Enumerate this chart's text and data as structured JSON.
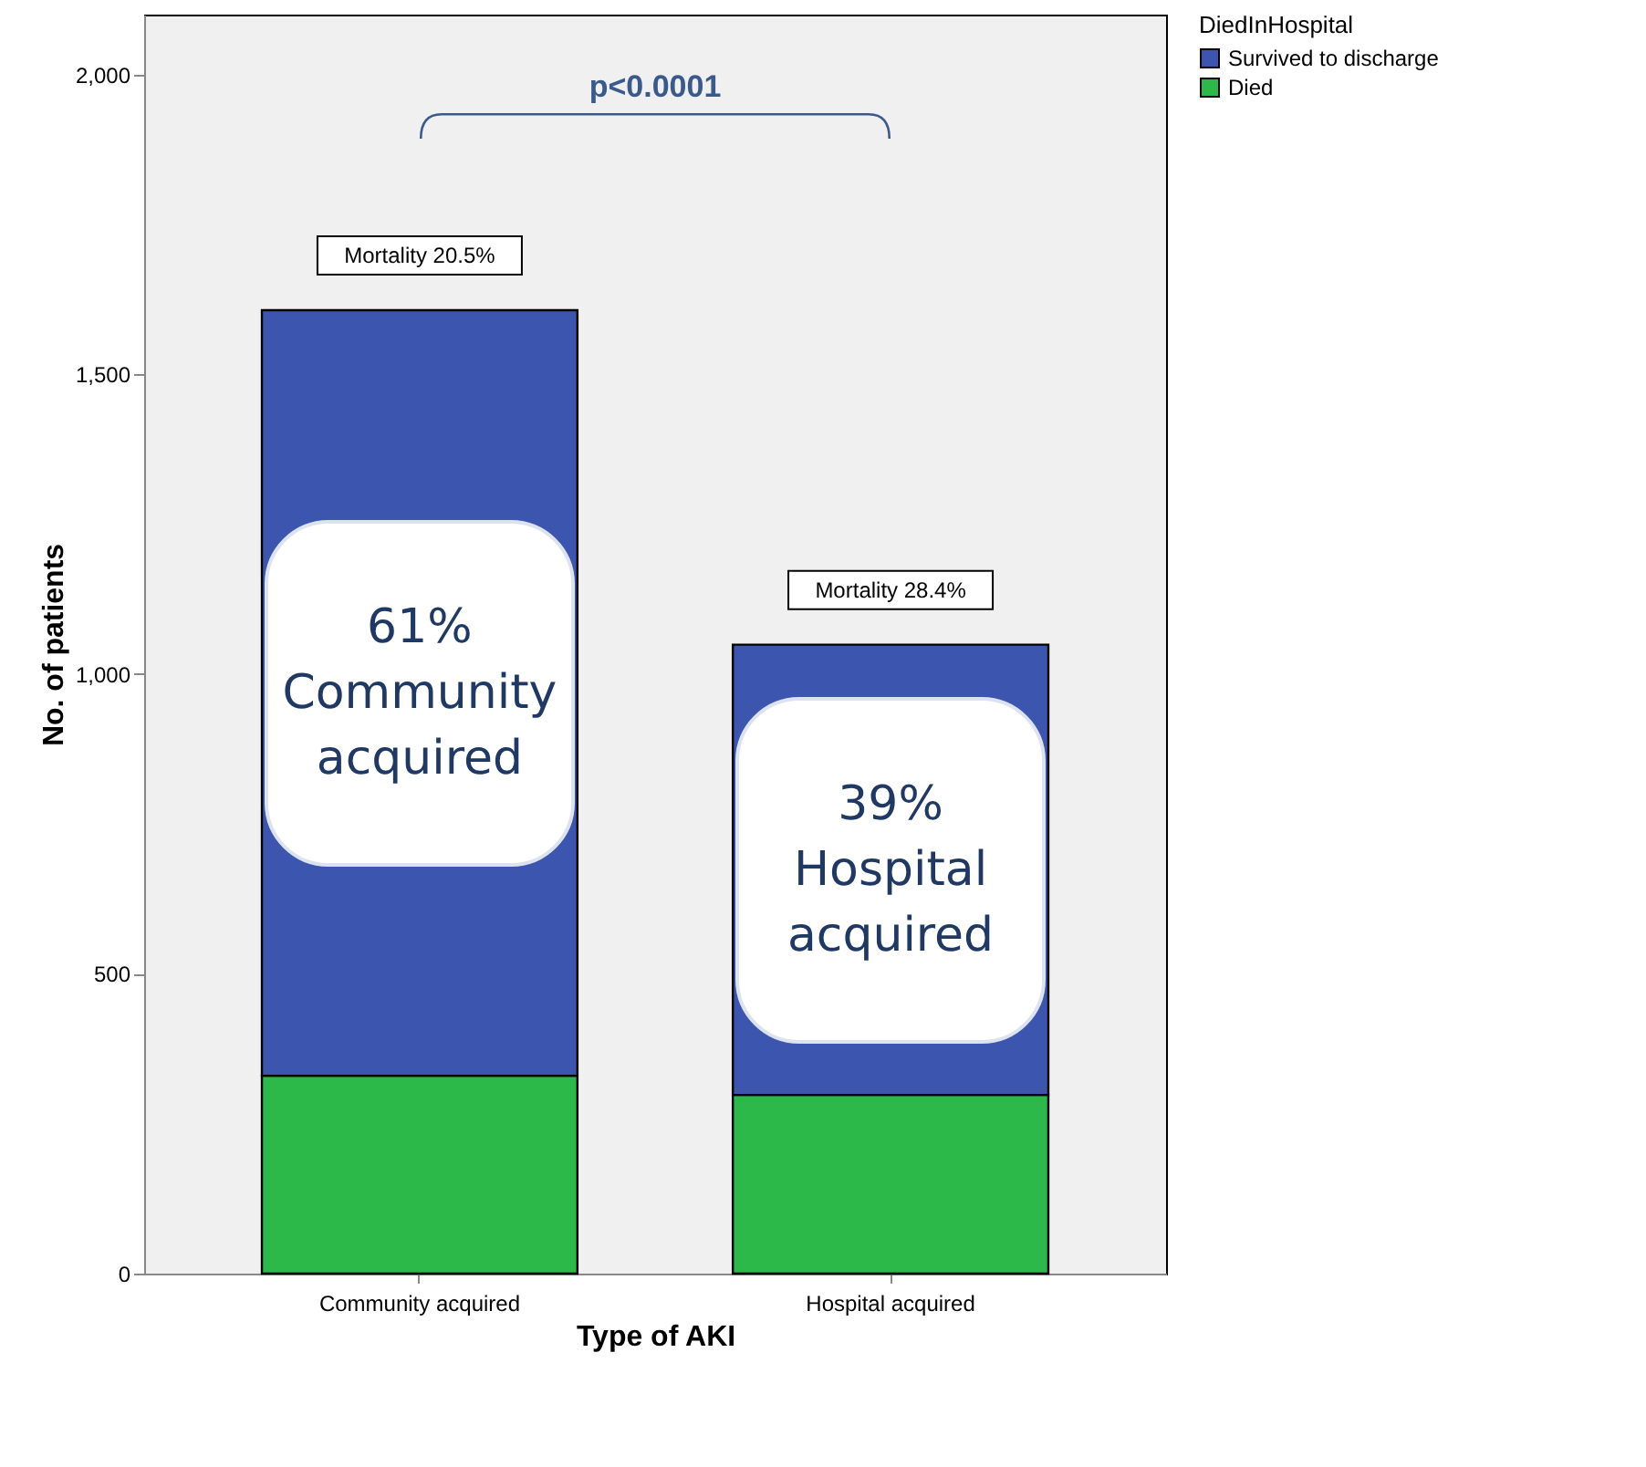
{
  "chart_data": {
    "type": "bar",
    "xlabel": "Type of AKI",
    "ylabel": "No. of patients",
    "legend_title": "DiedInHospital",
    "legend": "top right",
    "stacked": true,
    "categories": [
      "Community acquired",
      "Hospital acquired"
    ],
    "series": [
      {
        "name": "Died",
        "color": "#2db84a",
        "values": [
          330,
          298
        ]
      },
      {
        "name": "Survived to discharge",
        "color": "#3c56b0",
        "values": [
          1277,
          751
        ]
      }
    ],
    "ylim": [
      0,
      2100
    ],
    "yticks": [
      0,
      500,
      {
        "value": 1000,
        "label": "1,000"
      },
      {
        "value": 1500,
        "label": "1,500"
      },
      {
        "value": 2000,
        "label": "2,000"
      }
    ],
    "annotations": [
      "p<0.0001",
      "Mortality 20.5%",
      "Mortality 28.4%",
      "61% Community acquired",
      "39% Hospital acquired"
    ]
  }
}
